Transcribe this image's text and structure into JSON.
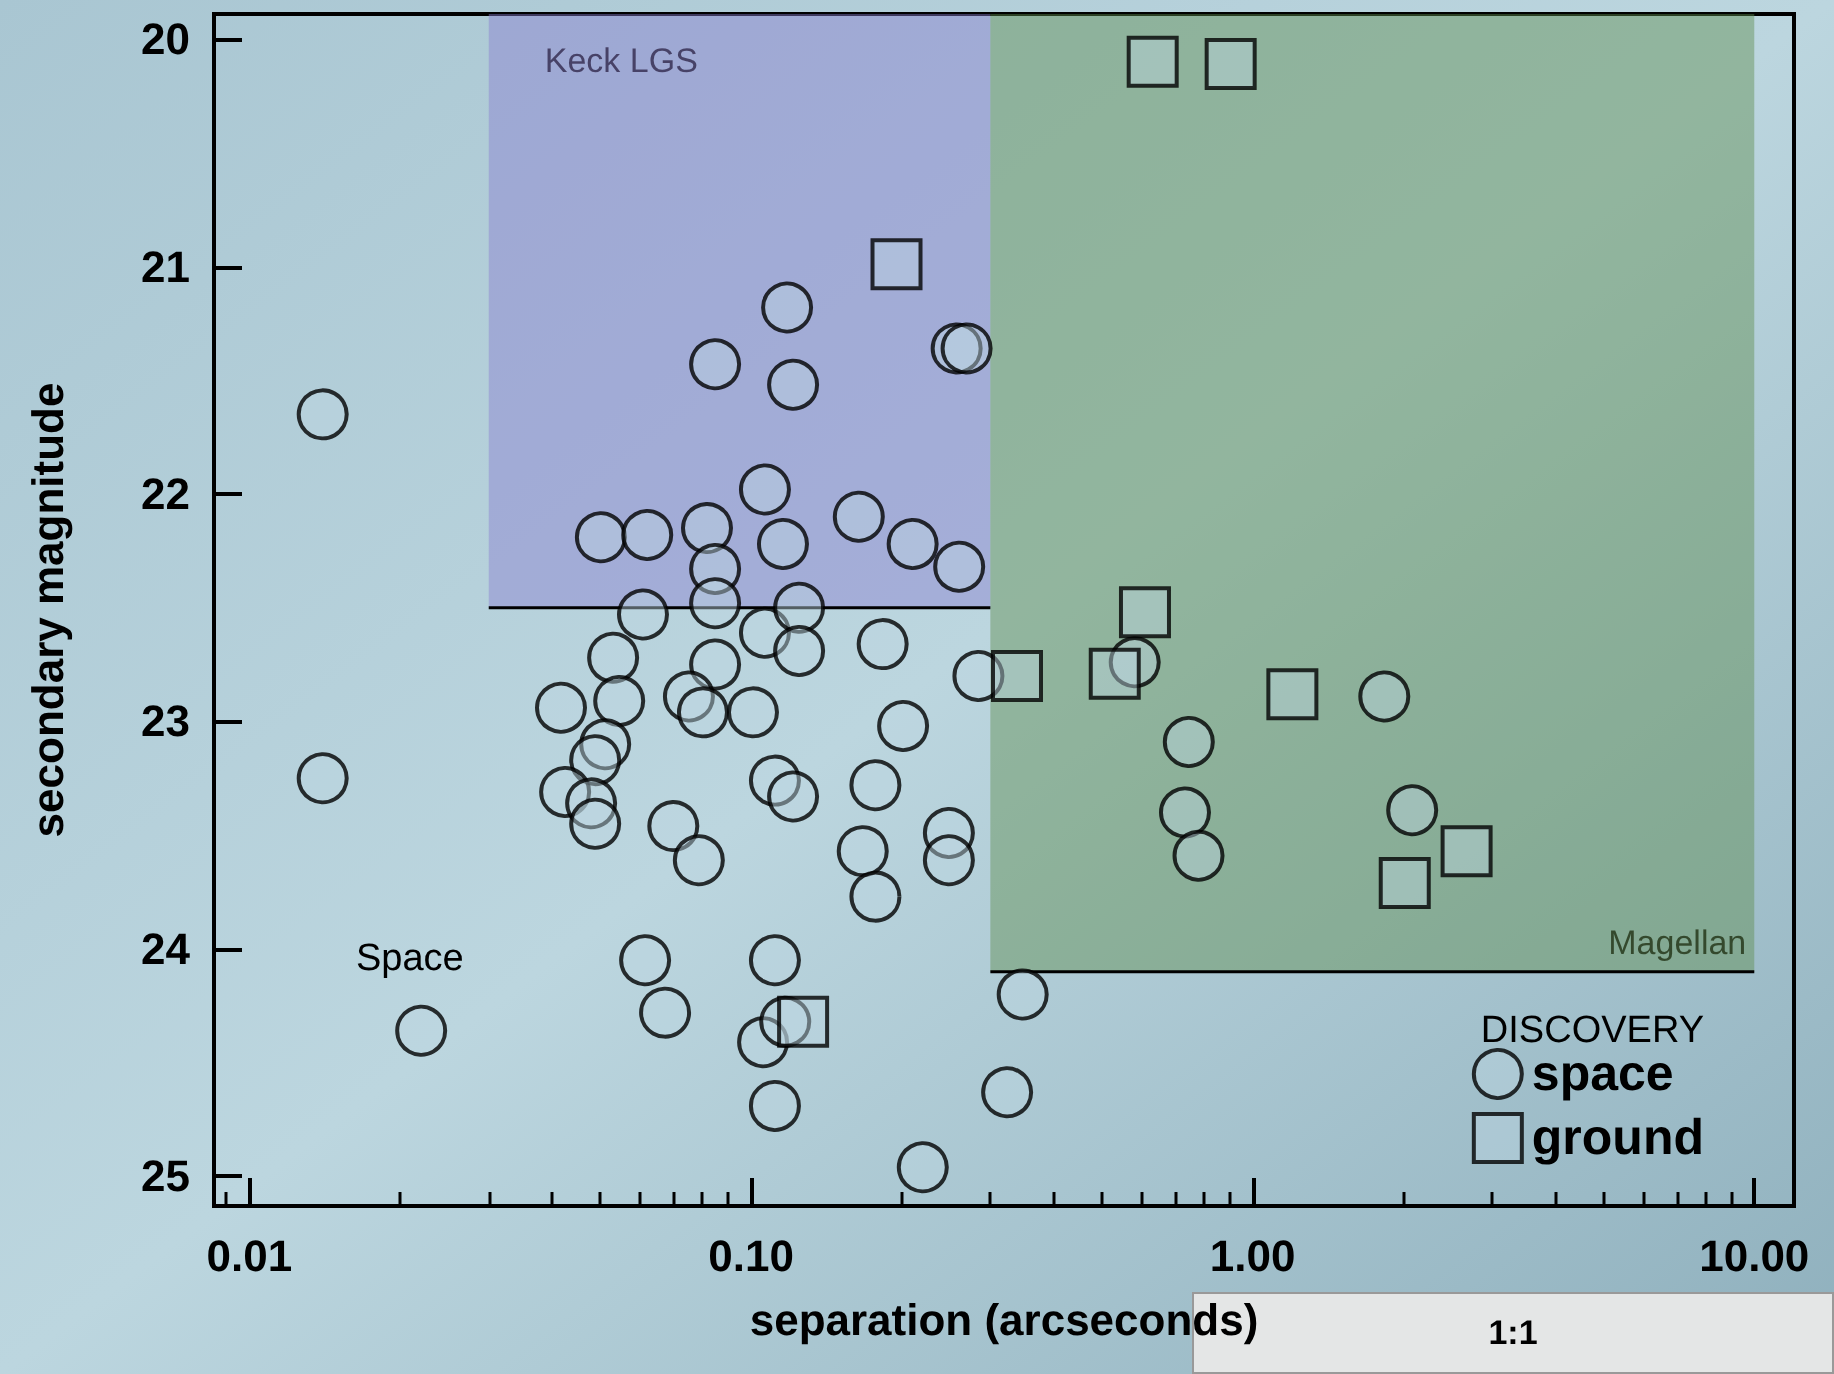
{
  "chart_data": {
    "type": "scatter",
    "xlabel": "separation (arcseconds)",
    "ylabel": "secondary magnitude",
    "log": "x",
    "xlim": [
      0.0085,
      12
    ],
    "xticks": [
      0.01,
      {
        "value": 0.1,
        "label": "0.10"
      },
      {
        "value": 1,
        "label": "1.00"
      },
      {
        "value": 10,
        "label": "10.00"
      }
    ],
    "ylim": [
      25.13,
      19.89
    ],
    "yticks": [
      20,
      21,
      22,
      23,
      24,
      25
    ],
    "grid": false,
    "legend": "bottom right",
    "legend_title": "DISCOVERY",
    "series": [
      {
        "type": "area",
        "name": "Keck LGS",
        "color": "#8a7fd0",
        "x": [
          0.03,
          0.3
        ],
        "values": [
          22.5,
          22.5
        ]
      },
      {
        "type": "area",
        "name": "Magellan",
        "color": "#5f8f4f",
        "x": [
          0.3,
          10
        ],
        "values": [
          24.1,
          24.1
        ]
      },
      {
        "name": "space",
        "color": "#000000",
        "marker": "circle",
        "x": [
          0.014,
          0.014,
          0.022,
          0.0502,
          0.0621,
          0.0817,
          0.0848,
          0.0848,
          0.0609,
          0.0531,
          0.0848,
          0.1066,
          0.1158,
          0.118,
          0.0848,
          0.1213,
          0.1066,
          0.1247,
          0.1247,
          0.0418,
          0.0546,
          0.0752,
          0.0802,
          0.1009,
          0.0512,
          0.0489,
          0.0426,
          0.048,
          0.0489,
          0.1116,
          0.1213,
          0.07,
          0.0787,
          0.0615,
          0.1116,
          0.0674,
          0.1057,
          0.117,
          0.1116,
          0.164,
          0.21,
          0.26,
          0.183,
          0.284,
          0.582,
          0.201,
          0.177,
          0.167,
          0.248,
          0.248,
          0.177,
          0.746,
          0.733,
          0.78,
          1.83,
          2.08,
          0.348,
          0.324,
          0.22,
          0.257,
          0.269
        ],
        "values": [
          21.65,
          23.25,
          24.36,
          22.19,
          22.18,
          22.15,
          22.33,
          22.48,
          22.53,
          22.72,
          22.75,
          21.98,
          22.22,
          21.18,
          21.43,
          21.52,
          22.61,
          22.5,
          22.69,
          22.94,
          22.91,
          22.89,
          22.96,
          22.96,
          23.1,
          23.17,
          23.31,
          23.36,
          23.45,
          23.26,
          23.33,
          23.46,
          23.61,
          24.05,
          24.05,
          24.28,
          24.41,
          24.32,
          24.69,
          22.1,
          22.22,
          22.32,
          22.66,
          22.8,
          22.74,
          23.02,
          23.28,
          23.57,
          23.49,
          23.61,
          23.77,
          23.09,
          23.4,
          23.59,
          22.89,
          23.39,
          24.2,
          24.63,
          24.96,
          21.36,
          21.36
        ]
      },
      {
        "name": "ground",
        "color": "#000000",
        "marker": "square",
        "x": [
          0.632,
          0.904,
          0.195,
          0.61,
          0.339,
          0.531,
          1.2,
          2.01,
          2.67,
          0.127
        ],
        "values": [
          20.1,
          20.11,
          20.99,
          22.52,
          22.8,
          22.79,
          22.88,
          23.71,
          23.57,
          24.32
        ]
      }
    ],
    "annotations": [
      "Space",
      "1:1"
    ]
  }
}
